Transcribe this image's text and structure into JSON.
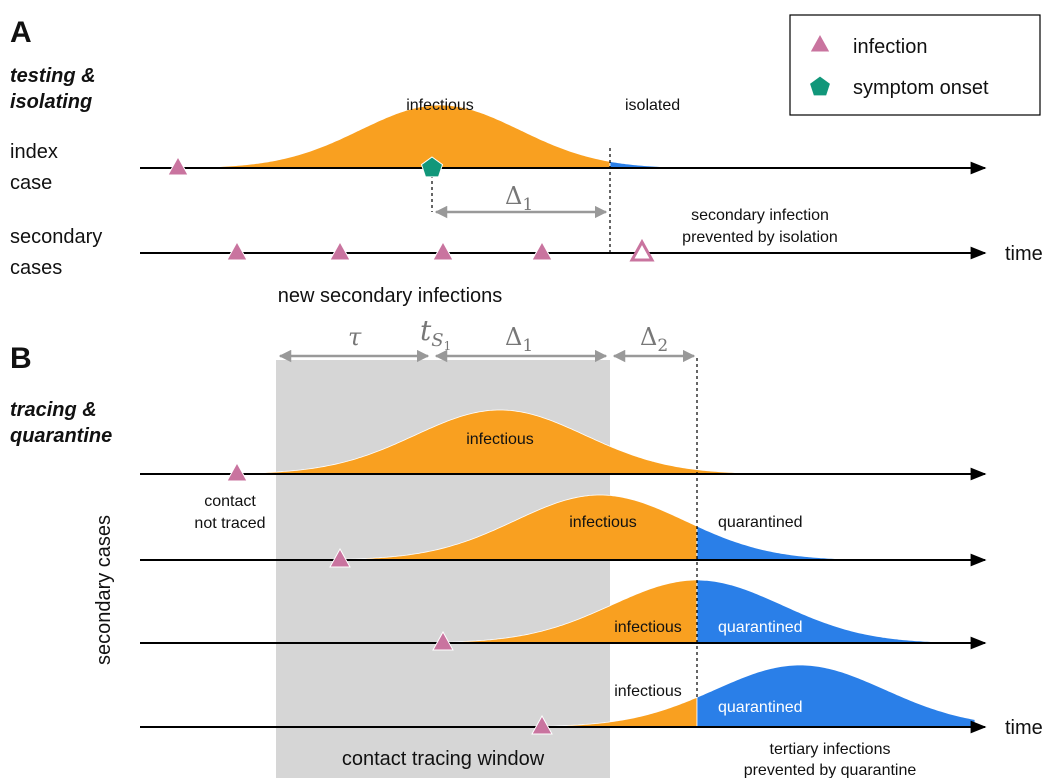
{
  "panel_a": {
    "letter": "A",
    "strategy": [
      "testing &",
      "isolating"
    ],
    "index_label": [
      "index",
      "case"
    ],
    "secondary_label": [
      "secondary",
      "cases"
    ],
    "infectious": "infectious",
    "isolated": "isolated",
    "delta": {
      "symbol": "Δ",
      "sub": "1"
    },
    "prevented": [
      "secondary infection",
      "prevented by isolation"
    ],
    "time": "time",
    "new_infections": "new secondary infections"
  },
  "legend": {
    "items": [
      "infection",
      "symptom onset"
    ]
  },
  "panel_b": {
    "letter": "B",
    "strategy": [
      "tracing &",
      "quarantine"
    ],
    "tau": "τ",
    "ts": {
      "symbol": "t",
      "sub": "S",
      "subsub": "1"
    },
    "delta1": {
      "symbol": "Δ",
      "sub": "1"
    },
    "delta2": {
      "symbol": "Δ",
      "sub": "2"
    },
    "rows": [
      {
        "infectious": "infectious",
        "note": [
          "contact",
          "not traced"
        ]
      },
      {
        "infectious": "infectious",
        "quarantined": "quarantined"
      },
      {
        "infectious": "infectious",
        "quarantined": "quarantined"
      },
      {
        "infectious": "infectious",
        "quarantined": "quarantined"
      }
    ],
    "y_label": "secondary cases",
    "time": "time",
    "window": "contact tracing window",
    "prevented": [
      "tertiary infections",
      "prevented by quarantine"
    ]
  }
}
